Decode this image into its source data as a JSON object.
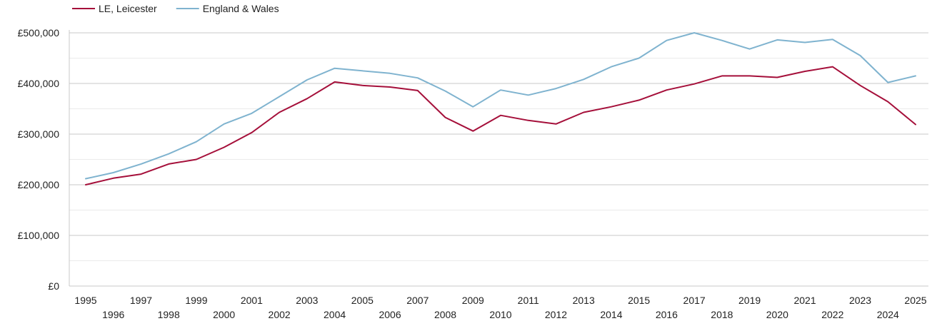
{
  "chart_data": {
    "type": "line",
    "title": "",
    "xlabel": "",
    "ylabel": "",
    "x": [
      1995,
      1996,
      1997,
      1998,
      1999,
      2000,
      2001,
      2002,
      2003,
      2004,
      2005,
      2006,
      2007,
      2008,
      2009,
      2010,
      2011,
      2012,
      2013,
      2014,
      2015,
      2016,
      2017,
      2018,
      2019,
      2020,
      2021,
      2022,
      2023,
      2024,
      2025
    ],
    "xlim": [
      1995,
      2025
    ],
    "ylim": [
      0,
      500000
    ],
    "y_ticks": [
      0,
      100000,
      200000,
      300000,
      400000,
      500000
    ],
    "y_tick_labels": [
      "£0",
      "£100,000",
      "£200,000",
      "£300,000",
      "£400,000",
      "£500,000"
    ],
    "grid": true,
    "legend_position": "top-left",
    "series": [
      {
        "name": "LE, Leicester",
        "color": "#a50f3a",
        "values": [
          200000,
          213000,
          221000,
          241000,
          250000,
          274000,
          303000,
          343000,
          370000,
          403000,
          396000,
          393000,
          386000,
          333000,
          306000,
          337000,
          327000,
          320000,
          343000,
          354000,
          367000,
          387000,
          399000,
          415000,
          415000,
          412000,
          424000,
          433000,
          396000,
          364000,
          319000
        ]
      },
      {
        "name": "England & Wales",
        "color": "#7fb3cf",
        "values": [
          212000,
          224000,
          241000,
          261000,
          285000,
          320000,
          341000,
          374000,
          407000,
          430000,
          425000,
          420000,
          411000,
          385000,
          354000,
          387000,
          377000,
          390000,
          408000,
          433000,
          450000,
          485000,
          500000,
          485000,
          468000,
          486000,
          481000,
          487000,
          455000,
          402000,
          415000
        ]
      }
    ]
  }
}
